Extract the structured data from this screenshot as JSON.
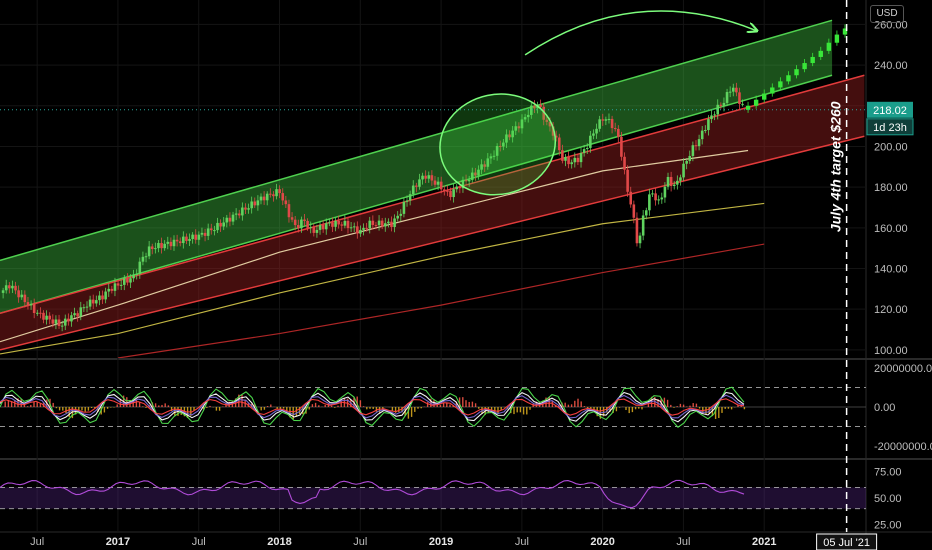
{
  "header": {
    "currency": "USD"
  },
  "chart_data": {
    "type": "candlestick",
    "x_ticks": [
      "Jul",
      "2017",
      "Jul",
      "2018",
      "Jul",
      "2019",
      "Jul",
      "2020",
      "Jul",
      "2021"
    ],
    "x_tick_dates": [
      2016.5,
      2017.0,
      2017.5,
      2018.0,
      2018.5,
      2019.0,
      2019.5,
      2020.0,
      2020.5,
      2021.0
    ],
    "x_range": [
      2016.27,
      2021.63
    ],
    "price_panel": {
      "y_ticks": [
        "260.00",
        "240.00",
        "220.00",
        "200.00",
        "180.00",
        "160.00",
        "140.00",
        "120.00",
        "100.00"
      ],
      "ylim": [
        96,
        272
      ],
      "current_price": "218.02",
      "countdown": "1d 23h",
      "target_label": "July 4th target $260",
      "target_date": "05 Jul '21",
      "target_x": 2021.51,
      "series": [
        {
          "date": 2016.27,
          "close": 128
        },
        {
          "date": 2016.33,
          "close": 132
        },
        {
          "date": 2016.4,
          "close": 126
        },
        {
          "date": 2016.45,
          "close": 122
        },
        {
          "date": 2016.5,
          "close": 118
        },
        {
          "date": 2016.55,
          "close": 116
        },
        {
          "date": 2016.6,
          "close": 114
        },
        {
          "date": 2016.65,
          "close": 112
        },
        {
          "date": 2016.7,
          "close": 116
        },
        {
          "date": 2016.75,
          "close": 118
        },
        {
          "date": 2016.8,
          "close": 122
        },
        {
          "date": 2016.85,
          "close": 124
        },
        {
          "date": 2016.9,
          "close": 126
        },
        {
          "date": 2016.95,
          "close": 130
        },
        {
          "date": 2017.0,
          "close": 132
        },
        {
          "date": 2017.1,
          "close": 136
        },
        {
          "date": 2017.15,
          "close": 145
        },
        {
          "date": 2017.2,
          "close": 150
        },
        {
          "date": 2017.3,
          "close": 152
        },
        {
          "date": 2017.4,
          "close": 154
        },
        {
          "date": 2017.5,
          "close": 156
        },
        {
          "date": 2017.6,
          "close": 160
        },
        {
          "date": 2017.7,
          "close": 165
        },
        {
          "date": 2017.8,
          "close": 170
        },
        {
          "date": 2017.9,
          "close": 175
        },
        {
          "date": 2018.0,
          "close": 178
        },
        {
          "date": 2018.05,
          "close": 168
        },
        {
          "date": 2018.1,
          "close": 160
        },
        {
          "date": 2018.15,
          "close": 164
        },
        {
          "date": 2018.2,
          "close": 158
        },
        {
          "date": 2018.3,
          "close": 162
        },
        {
          "date": 2018.4,
          "close": 162
        },
        {
          "date": 2018.5,
          "close": 158
        },
        {
          "date": 2018.55,
          "close": 162
        },
        {
          "date": 2018.7,
          "close": 162
        },
        {
          "date": 2018.75,
          "close": 168
        },
        {
          "date": 2018.8,
          "close": 176
        },
        {
          "date": 2018.85,
          "close": 182
        },
        {
          "date": 2018.9,
          "close": 186
        },
        {
          "date": 2019.0,
          "close": 180
        },
        {
          "date": 2019.05,
          "close": 176
        },
        {
          "date": 2019.1,
          "close": 180
        },
        {
          "date": 2019.2,
          "close": 186
        },
        {
          "date": 2019.3,
          "close": 194
        },
        {
          "date": 2019.4,
          "close": 204
        },
        {
          "date": 2019.5,
          "close": 212
        },
        {
          "date": 2019.55,
          "close": 218
        },
        {
          "date": 2019.6,
          "close": 221
        },
        {
          "date": 2019.65,
          "close": 212
        },
        {
          "date": 2019.7,
          "close": 206
        },
        {
          "date": 2019.75,
          "close": 194
        },
        {
          "date": 2019.8,
          "close": 192
        },
        {
          "date": 2019.85,
          "close": 194
        },
        {
          "date": 2019.9,
          "close": 200
        },
        {
          "date": 2019.95,
          "close": 208
        },
        {
          "date": 2020.0,
          "close": 214
        },
        {
          "date": 2020.05,
          "close": 212
        },
        {
          "date": 2020.1,
          "close": 204
        },
        {
          "date": 2020.15,
          "close": 180
        },
        {
          "date": 2020.18,
          "close": 170
        },
        {
          "date": 2020.2,
          "close": 160
        },
        {
          "date": 2020.22,
          "close": 150
        },
        {
          "date": 2020.25,
          "close": 165
        },
        {
          "date": 2020.3,
          "close": 178
        },
        {
          "date": 2020.35,
          "close": 172
        },
        {
          "date": 2020.4,
          "close": 184
        },
        {
          "date": 2020.45,
          "close": 180
        },
        {
          "date": 2020.5,
          "close": 190
        },
        {
          "date": 2020.55,
          "close": 198
        },
        {
          "date": 2020.6,
          "close": 204
        },
        {
          "date": 2020.65,
          "close": 212
        },
        {
          "date": 2020.7,
          "close": 218
        },
        {
          "date": 2020.75,
          "close": 222
        },
        {
          "date": 2020.8,
          "close": 230
        },
        {
          "date": 2020.85,
          "close": 222
        },
        {
          "date": 2020.88,
          "close": 218
        }
      ],
      "projection": [
        {
          "date": 2020.9,
          "close": 220
        },
        {
          "date": 2020.95,
          "close": 223
        },
        {
          "date": 2021.0,
          "close": 226
        },
        {
          "date": 2021.05,
          "close": 229
        },
        {
          "date": 2021.1,
          "close": 232
        },
        {
          "date": 2021.15,
          "close": 235
        },
        {
          "date": 2021.2,
          "close": 238
        },
        {
          "date": 2021.25,
          "close": 241
        },
        {
          "date": 2021.3,
          "close": 244
        },
        {
          "date": 2021.35,
          "close": 247
        },
        {
          "date": 2021.4,
          "close": 251
        },
        {
          "date": 2021.45,
          "close": 255
        },
        {
          "date": 2021.5,
          "close": 258
        }
      ],
      "channel_green": {
        "x": [
          2016.27,
          2021.42
        ],
        "upper": [
          144,
          262
        ],
        "lower": [
          118,
          235
        ]
      },
      "channel_red": {
        "x": [
          2016.27,
          2021.62
        ],
        "upper": [
          118,
          235
        ],
        "lower": [
          100,
          205
        ]
      },
      "moving_averages": [
        {
          "color": "#f2e0b0",
          "points": [
            [
              2016.27,
              104
            ],
            [
              2017.0,
              122
            ],
            [
              2018.0,
              148
            ],
            [
              2019.0,
              168
            ],
            [
              2020.0,
              188
            ],
            [
              2020.9,
              198
            ]
          ]
        },
        {
          "color": "#d6c94a",
          "points": [
            [
              2016.27,
              98
            ],
            [
              2017.0,
              108
            ],
            [
              2018.0,
              128
            ],
            [
              2019.0,
              146
            ],
            [
              2020.0,
              162
            ],
            [
              2021.0,
              172
            ]
          ]
        },
        {
          "color": "#c02a2a",
          "points": [
            [
              2017.0,
              96
            ],
            [
              2018.0,
              108
            ],
            [
              2019.0,
              122
            ],
            [
              2020.0,
              138
            ],
            [
              2021.0,
              152
            ]
          ]
        }
      ]
    },
    "oscillator_panel": {
      "y_ticks": [
        "20000000.00",
        "0.00",
        "-20000000.00"
      ],
      "ylim": [
        -23000000,
        23000000
      ],
      "dashed_levels": [
        10000000,
        -10000000
      ]
    },
    "rsi_panel": {
      "y_ticks": [
        "75.00",
        "50.00",
        "25.00"
      ],
      "ylim": [
        20,
        82
      ],
      "band": [
        40,
        60
      ],
      "dashed_levels": [
        60,
        40
      ]
    }
  }
}
